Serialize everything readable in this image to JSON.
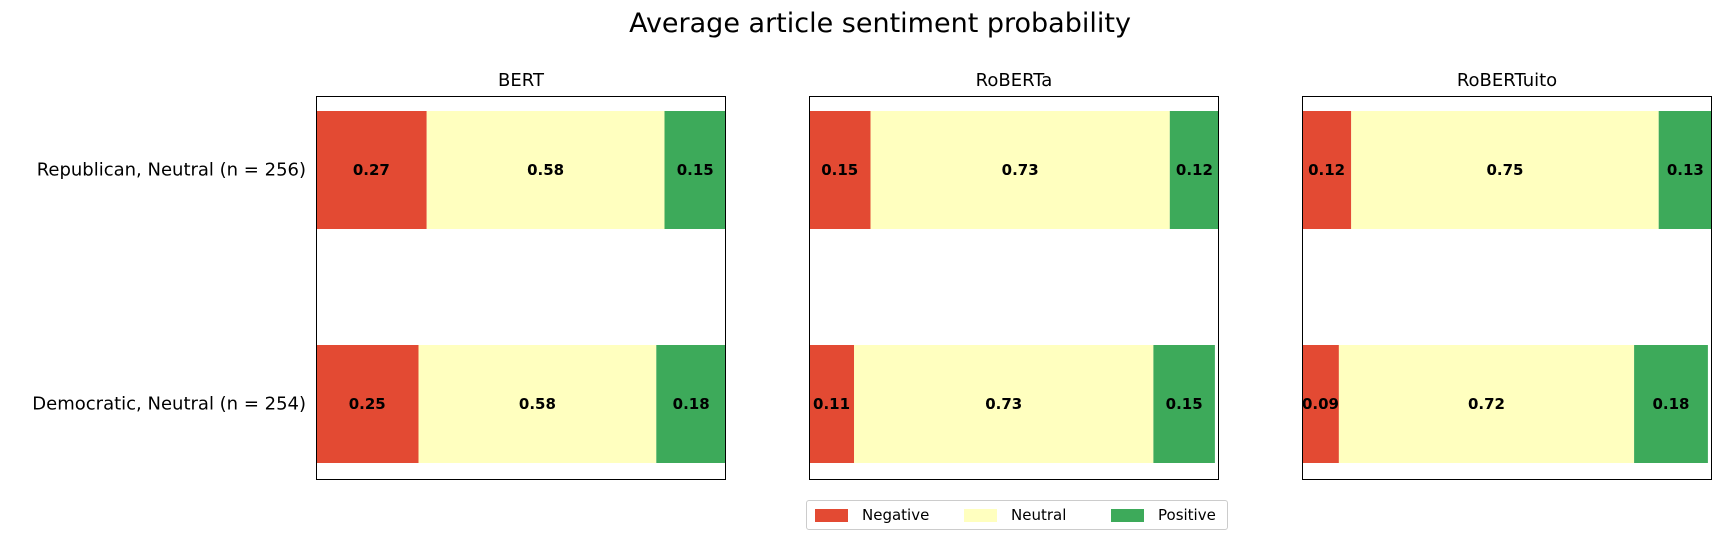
{
  "chart_data": {
    "type": "bar",
    "orientation": "horizontal-stacked",
    "title": "Average article sentiment probability",
    "categories": [
      "Republican, Neutral (n = 256)",
      "Democratic, Neutral (n = 254)"
    ],
    "segments": [
      "Negative",
      "Neutral",
      "Positive"
    ],
    "colors": {
      "Negative": "#e34a33",
      "Neutral": "#ffffbf",
      "Positive": "#3daa5a"
    },
    "xlim": [
      0,
      1
    ],
    "panels": [
      {
        "title": "BERT",
        "rows": [
          {
            "category": "Republican, Neutral (n = 256)",
            "values": [
              0.27,
              0.58,
              0.15
            ],
            "labels": [
              "0.27",
              "0.58",
              "0.15"
            ]
          },
          {
            "category": "Democratic, Neutral (n = 254)",
            "values": [
              0.25,
              0.58,
              0.18
            ],
            "labels": [
              "0.25",
              "0.58",
              "0.18"
            ]
          }
        ]
      },
      {
        "title": "RoBERTa",
        "rows": [
          {
            "category": "Republican, Neutral (n = 256)",
            "values": [
              0.15,
              0.73,
              0.12
            ],
            "labels": [
              "0.15",
              "0.73",
              "0.12"
            ]
          },
          {
            "category": "Democratic, Neutral (n = 254)",
            "values": [
              0.11,
              0.73,
              0.15
            ],
            "labels": [
              "0.11",
              "0.73",
              "0.15"
            ]
          }
        ]
      },
      {
        "title": "RoBERTuito",
        "rows": [
          {
            "category": "Republican, Neutral (n = 256)",
            "values": [
              0.12,
              0.75,
              0.13
            ],
            "labels": [
              "0.12",
              "0.75",
              "0.13"
            ]
          },
          {
            "category": "Democratic, Neutral (n = 254)",
            "values": [
              0.09,
              0.72,
              0.18
            ],
            "labels": [
              "0.09",
              "0.72",
              "0.18"
            ]
          }
        ]
      }
    ],
    "legend": {
      "placement": "bottom-center",
      "entries": [
        "Negative",
        "Neutral",
        "Positive"
      ]
    }
  }
}
